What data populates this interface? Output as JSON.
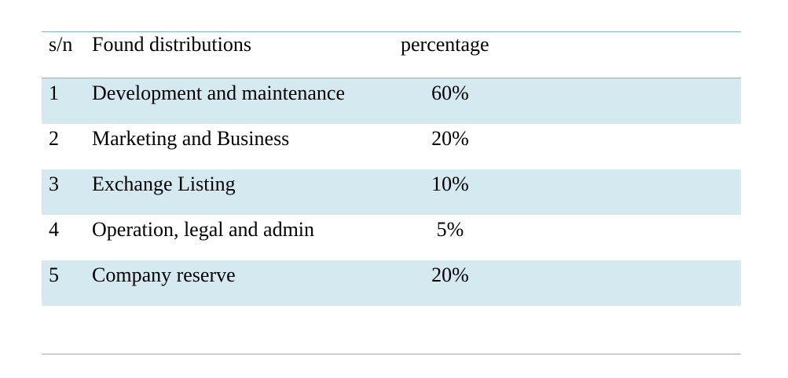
{
  "table": {
    "headers": {
      "sn": "s/n",
      "name": "Found distributions",
      "percentage": "percentage"
    },
    "rows": [
      {
        "sn": "1",
        "name": "Development and maintenance",
        "percentage": "60%"
      },
      {
        "sn": "2",
        "name": "Marketing and Business",
        "percentage": "20%"
      },
      {
        "sn": "3",
        "name": "Exchange Listing",
        "percentage": "10%"
      },
      {
        "sn": "4",
        "name": "Operation, legal and admin",
        "percentage": "5%"
      },
      {
        "sn": "5",
        "name": "Company reserve",
        "percentage": "20%"
      }
    ]
  },
  "colors": {
    "rule": "#7fb0cf",
    "shaded_row": "#d5e9f1",
    "text": "#000000"
  }
}
